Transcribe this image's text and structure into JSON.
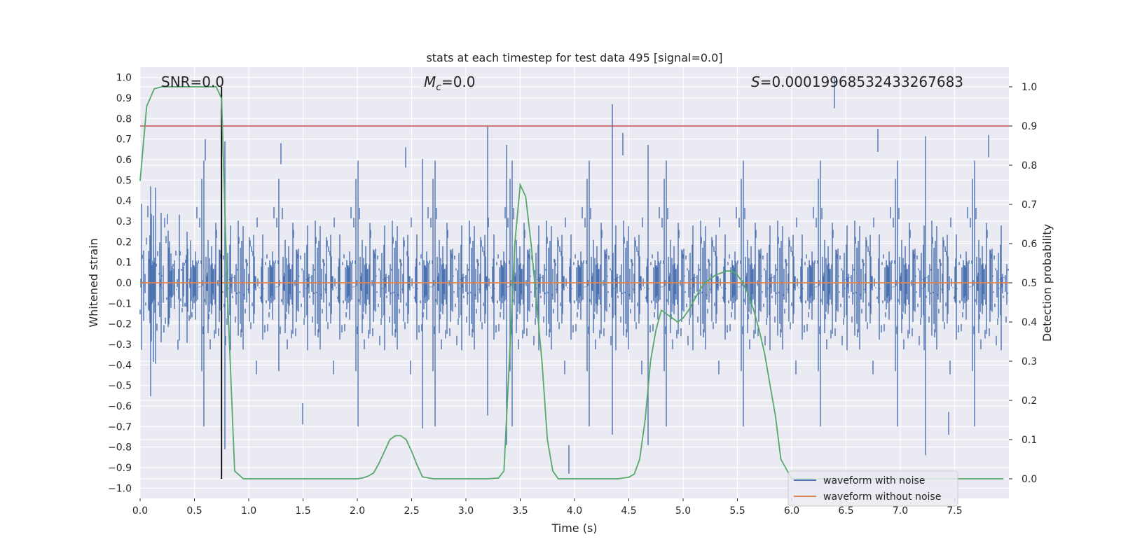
{
  "chart_data": {
    "type": "line",
    "title": "stats at each timestep for test data 495 [signal=0.0]",
    "xlabel": "Time (s)",
    "ylabel_left": "Whitened strain",
    "ylabel_right": "Detection probability",
    "xlim": [
      0.0,
      8.0
    ],
    "ylim_left": [
      -1.05,
      1.05
    ],
    "ylim_right": [
      -0.05,
      1.05
    ],
    "x_ticks": [
      "0.0",
      "0.5",
      "1.0",
      "1.5",
      "2.0",
      "2.5",
      "3.0",
      "3.5",
      "4.0",
      "4.5",
      "5.0",
      "5.5",
      "6.0",
      "6.5",
      "7.0",
      "7.5"
    ],
    "y_left_ticks": [
      "1.0",
      "0.9",
      "0.8",
      "0.7",
      "0.6",
      "0.5",
      "0.4",
      "0.3",
      "0.2",
      "0.1",
      "0.0",
      "−0.1",
      "−0.2",
      "−0.3",
      "−0.4",
      "−0.5",
      "−0.6",
      "−0.7",
      "−0.8",
      "−0.9",
      "−1.0"
    ],
    "y_right_ticks": [
      "1.0",
      "0.9",
      "0.8",
      "0.7",
      "0.6",
      "0.5",
      "0.4",
      "0.3",
      "0.2",
      "0.1",
      "0.0"
    ],
    "grid": true,
    "legend_position": "bottom-right",
    "annotations": {
      "snr": "SNR=0.0",
      "mc_symbol": "M",
      "mc_sub": "c",
      "mc_value": "=0.0",
      "s_symbol": "S",
      "s_value": "=0.00019968532433267683"
    },
    "threshold": {
      "axis": "right",
      "value": 0.9,
      "color": "#c44e52"
    },
    "marker_time": 0.75,
    "series": [
      {
        "name": "waveform with noise",
        "axis": "left",
        "color": "#4c72b0",
        "amplitude_typical": 0.4,
        "peaks": [
          {
            "x": 6.4,
            "y": 1.0
          },
          {
            "x": 4.35,
            "y": 0.87
          },
          {
            "x": 0.75,
            "y": 0.85
          },
          {
            "x": 3.2,
            "y": 0.76
          },
          {
            "x": 6.8,
            "y": 0.75
          },
          {
            "x": 7.82,
            "y": 0.72
          },
          {
            "x": 0.6,
            "y": 0.7
          },
          {
            "x": 1.3,
            "y": 0.68
          },
          {
            "x": 2.45,
            "y": 0.66
          },
          {
            "x": 4.45,
            "y": 0.73
          },
          {
            "x": 3.95,
            "y": -0.93
          },
          {
            "x": 7.24,
            "y": -0.84
          },
          {
            "x": 0.78,
            "y": -0.81
          },
          {
            "x": 3.38,
            "y": -0.79
          },
          {
            "x": 4.68,
            "y": -0.79
          },
          {
            "x": 2.6,
            "y": -0.71
          },
          {
            "x": 1.5,
            "y": -0.69
          },
          {
            "x": 7.45,
            "y": -0.74
          }
        ]
      },
      {
        "name": "waveform without noise",
        "axis": "left",
        "color": "#dd8452",
        "x": [
          0.0,
          8.0
        ],
        "y": [
          0.0,
          0.0
        ]
      },
      {
        "name": "detection probability",
        "axis": "right",
        "color": "#55a868",
        "x": [
          0.0,
          0.06,
          0.13,
          0.2,
          0.3,
          0.4,
          0.5,
          0.6,
          0.7,
          0.75,
          0.8,
          0.87,
          0.95,
          1.1,
          1.5,
          2.0,
          2.05,
          2.1,
          2.15,
          2.2,
          2.25,
          2.3,
          2.35,
          2.4,
          2.45,
          2.5,
          2.55,
          2.6,
          2.7,
          3.0,
          3.2,
          3.3,
          3.35,
          3.4,
          3.45,
          3.5,
          3.55,
          3.6,
          3.65,
          3.7,
          3.75,
          3.8,
          3.85,
          3.9,
          4.0,
          4.4,
          4.5,
          4.55,
          4.6,
          4.65,
          4.7,
          4.75,
          4.8,
          4.85,
          4.9,
          4.95,
          5.0,
          5.05,
          5.1,
          5.15,
          5.2,
          5.3,
          5.35,
          5.4,
          5.45,
          5.5,
          5.55,
          5.6,
          5.65,
          5.7,
          5.75,
          5.8,
          5.85,
          5.9,
          6.0,
          7.0,
          7.95
        ],
        "y": [
          0.76,
          0.95,
          0.995,
          1.0,
          1.0,
          1.0,
          1.0,
          1.0,
          1.0,
          0.97,
          0.5,
          0.02,
          0.0,
          0.0,
          0.0,
          0.0,
          0.002,
          0.007,
          0.015,
          0.04,
          0.07,
          0.1,
          0.11,
          0.11,
          0.1,
          0.07,
          0.035,
          0.005,
          0.0,
          0.0,
          0.0,
          0.002,
          0.02,
          0.3,
          0.6,
          0.75,
          0.72,
          0.6,
          0.45,
          0.3,
          0.1,
          0.02,
          0.0,
          0.0,
          0.0,
          0.0,
          0.004,
          0.012,
          0.05,
          0.15,
          0.3,
          0.38,
          0.43,
          0.42,
          0.41,
          0.4,
          0.41,
          0.43,
          0.455,
          0.48,
          0.5,
          0.52,
          0.525,
          0.53,
          0.53,
          0.52,
          0.5,
          0.47,
          0.43,
          0.38,
          0.32,
          0.24,
          0.16,
          0.05,
          0.0,
          0.0,
          0.0
        ]
      }
    ]
  }
}
